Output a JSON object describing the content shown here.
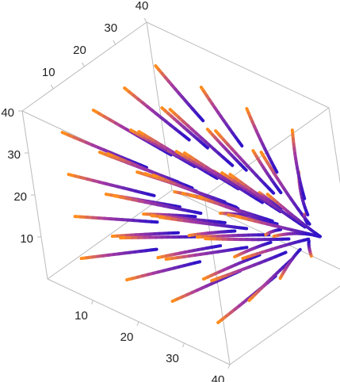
{
  "chart_data": {
    "type": "stream3d",
    "xlim": [
      0,
      40
    ],
    "xticks": [
      10,
      20,
      30,
      40
    ],
    "ylim": [
      0,
      40
    ],
    "yticks": [
      10,
      20,
      30,
      40
    ],
    "zlim": [
      0,
      40
    ],
    "zticks": [
      10,
      20,
      30,
      40
    ]
  }
}
